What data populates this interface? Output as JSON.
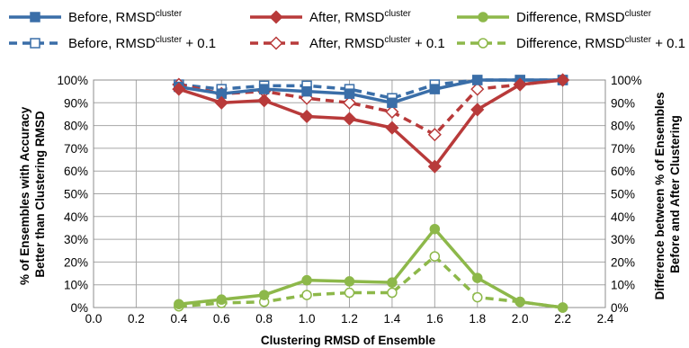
{
  "chart_data": {
    "type": "line",
    "xlabel": "Clustering RMSD of Ensemble",
    "ylabel_left": [
      "% of Ensembles with Accuracy",
      "Better than Clustering RMSD"
    ],
    "ylabel_right": [
      "Difference between % of Ensembles",
      "Before and After Clustering"
    ],
    "xlim": [
      0.0,
      2.4
    ],
    "ylim": [
      0,
      100
    ],
    "x_ticks": [
      "0.0",
      "0.2",
      "0.4",
      "0.6",
      "0.8",
      "1.0",
      "1.2",
      "1.4",
      "1.6",
      "1.8",
      "2.0",
      "2.2",
      "2.4"
    ],
    "y_ticks": [
      "0%",
      "10%",
      "20%",
      "30%",
      "40%",
      "50%",
      "60%",
      "70%",
      "80%",
      "90%",
      "100%"
    ],
    "grid": "vertical and horizontal",
    "legend_position": "top",
    "x": [
      0.4,
      0.6,
      0.8,
      1.0,
      1.2,
      1.4,
      1.6,
      1.8,
      2.0,
      2.2
    ],
    "series": [
      {
        "name": "Before, RMSD",
        "name_sup": "cluster",
        "name_suffix": "",
        "axis": "left",
        "color": "#3a6ea8",
        "style": "solid",
        "marker": "square-filled",
        "values": [
          97,
          94,
          96,
          95,
          94,
          90,
          96,
          100,
          100,
          100
        ]
      },
      {
        "name": "After, RMSD",
        "name_sup": "cluster",
        "name_suffix": "",
        "axis": "left",
        "color": "#b83a3a",
        "style": "solid",
        "marker": "diamond-filled",
        "values": [
          96,
          90,
          91,
          84,
          83,
          79,
          62,
          87,
          98,
          100
        ]
      },
      {
        "name": "Difference, RMSD",
        "name_sup": "cluster",
        "name_suffix": "",
        "axis": "right",
        "color": "#8db84a",
        "style": "solid",
        "marker": "circle-filled",
        "values": [
          1.5,
          3.5,
          5.5,
          12,
          11.5,
          11,
          34.5,
          13,
          2.5,
          0
        ]
      },
      {
        "name": "Before, RMSD",
        "name_sup": "cluster",
        "name_suffix": " + 0.1",
        "axis": "left",
        "color": "#3a6ea8",
        "style": "dashed",
        "marker": "square-open",
        "values": [
          98,
          96,
          97.5,
          97.5,
          96,
          92,
          98,
          100,
          100,
          100
        ]
      },
      {
        "name": "After, RMSD",
        "name_sup": "cluster",
        "name_suffix": " + 0.1",
        "axis": "left",
        "color": "#b83a3a",
        "style": "dashed",
        "marker": "diamond-open",
        "values": [
          98,
          94,
          95,
          92,
          90,
          86,
          76,
          96,
          98,
          100
        ]
      },
      {
        "name": "Difference, RMSD",
        "name_sup": "cluster",
        "name_suffix": " + 0.1",
        "axis": "right",
        "color": "#8db84a",
        "style": "dashed",
        "marker": "circle-open",
        "values": [
          0.5,
          2,
          2.5,
          5.5,
          6.5,
          6.5,
          22.5,
          4.5,
          2.5,
          0
        ]
      }
    ]
  }
}
